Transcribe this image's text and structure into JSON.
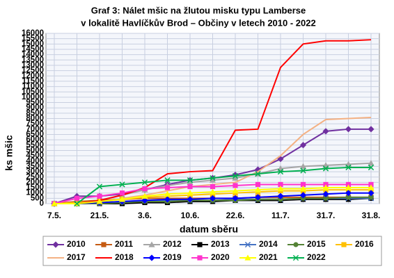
{
  "chart_data": {
    "type": "line",
    "title": "Graf 3: Nálet mšic na žlutou misku typu Lamberse",
    "subtitle": "v lokalitě Havlíčkův Brod – Občiny v letech 2010 - 2022",
    "x_label": "datum sběru",
    "y_label": "ks mšic",
    "categories": [
      "7.5.",
      null,
      "21.5.",
      null,
      "3.6.",
      null,
      "10.6.",
      null,
      "22.6.",
      null,
      "11.7.",
      null,
      "31.7.",
      null,
      "31.8."
    ],
    "ylim": [
      0,
      16000
    ],
    "yticks": [
      0,
      500,
      1000,
      1500,
      2000,
      2500,
      3000,
      3500,
      4000,
      4500,
      5000,
      5500,
      6000,
      6500,
      7000,
      7500,
      8000,
      8500,
      9000,
      9500,
      10000,
      10500,
      11000,
      11500,
      12000,
      12500,
      13000,
      13500,
      14000,
      14500,
      15000,
      15500,
      16000
    ],
    "grid": true,
    "series": [
      {
        "name": "2010",
        "color": "#7030a0",
        "marker": "diamond",
        "values": [
          0,
          700,
          700,
          900,
          1300,
          1800,
          2200,
          2400,
          2700,
          3200,
          4200,
          5500,
          6800,
          7000,
          7000
        ]
      },
      {
        "name": "2011",
        "color": "#c55a11",
        "marker": "square",
        "values": [
          0,
          200,
          300,
          400,
          500,
          500,
          500,
          500,
          500,
          600,
          600,
          600,
          600,
          600,
          600
        ]
      },
      {
        "name": "2012",
        "color": "#a5a5a5",
        "marker": "triangle",
        "values": [
          0,
          0,
          300,
          800,
          1300,
          1700,
          2000,
          2200,
          2400,
          2800,
          3300,
          3500,
          3600,
          3700,
          3800
        ]
      },
      {
        "name": "2013",
        "color": "#000000",
        "marker": "square",
        "values": [
          0,
          0,
          0,
          0,
          100,
          100,
          200,
          200,
          300,
          300,
          300,
          400,
          400,
          400,
          500
        ]
      },
      {
        "name": "2014",
        "color": "#4472c4",
        "marker": "x",
        "values": [
          0,
          0,
          100,
          200,
          300,
          300,
          300,
          300,
          400,
          400,
          400,
          500,
          500,
          500,
          500
        ]
      },
      {
        "name": "2015",
        "color": "#548235",
        "marker": "circle",
        "values": [
          0,
          0,
          0,
          100,
          200,
          200,
          300,
          300,
          300,
          400,
          400,
          500,
          500,
          600,
          600
        ]
      },
      {
        "name": "2016",
        "color": "#ffc000",
        "marker": "square",
        "values": [
          0,
          100,
          200,
          400,
          600,
          700,
          800,
          900,
          1000,
          1100,
          1200,
          1200,
          1300,
          1300,
          1300
        ]
      },
      {
        "name": "2017",
        "color": "#f4b183",
        "marker": "none",
        "values": [
          null,
          null,
          null,
          500,
          800,
          1200,
          1600,
          1800,
          2000,
          3000,
          4500,
          6500,
          7900,
          8000,
          8100
        ]
      },
      {
        "name": "2018",
        "color": "#ff0000",
        "marker": "none",
        "values": [
          null,
          0,
          300,
          800,
          1500,
          2800,
          3000,
          3100,
          6900,
          7000,
          12800,
          15000,
          15300,
          15300,
          15400
        ]
      },
      {
        "name": "2019",
        "color": "#0000ff",
        "marker": "diamond",
        "values": [
          0,
          0,
          100,
          200,
          300,
          400,
          400,
          500,
          500,
          600,
          700,
          800,
          900,
          1000,
          1000
        ]
      },
      {
        "name": "2020",
        "color": "#ff33cc",
        "marker": "square",
        "values": [
          0,
          500,
          700,
          1000,
          1400,
          1500,
          1600,
          1600,
          1700,
          1800,
          1800,
          1800,
          1800,
          1800,
          1800
        ]
      },
      {
        "name": "2021",
        "color": "#ffff00",
        "marker": "triangle",
        "values": [
          0,
          0,
          200,
          400,
          700,
          900,
          1000,
          1100,
          1200,
          1300,
          1400,
          1400,
          1500,
          1500,
          1500
        ]
      },
      {
        "name": "2022",
        "color": "#00b050",
        "marker": "x",
        "values": [
          null,
          0,
          1600,
          1800,
          2000,
          2200,
          2200,
          2400,
          2600,
          2800,
          3000,
          3100,
          3300,
          3400,
          3400
        ]
      }
    ]
  }
}
